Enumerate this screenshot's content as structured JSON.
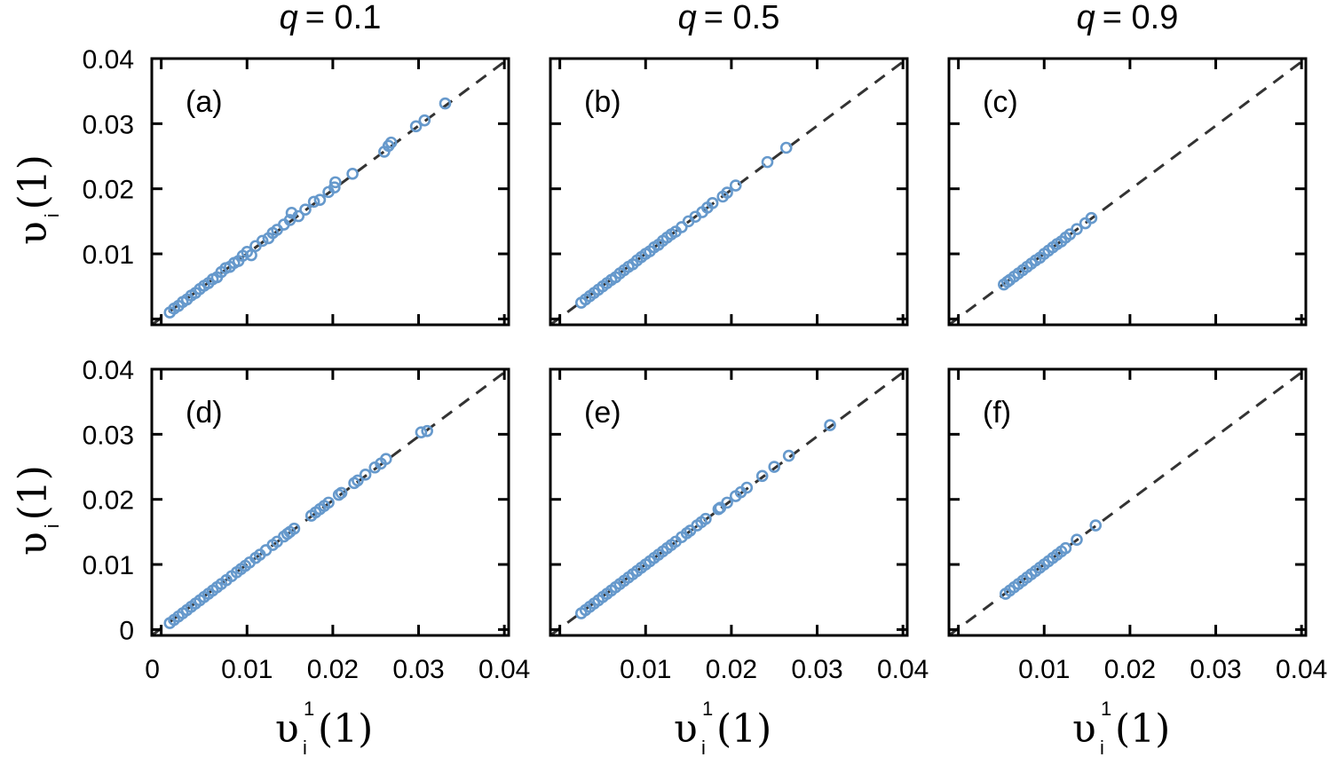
{
  "chart_data": [
    {
      "type": "scatter",
      "panel": "(a)",
      "title": "q = 0.1",
      "q": "0.1",
      "xlabel": "υ_i^1(1)",
      "ylabel": "υ_i(1)",
      "xlim": [
        -0.0011,
        0.0405
      ],
      "ylim": [
        -0.0009,
        0.04
      ],
      "xticks": [],
      "yticks": [
        "0.04",
        "0.03",
        "0.02",
        "0.01"
      ],
      "reference_line": "y = x (dashed)",
      "points": [
        [
          0.0331,
          0.0331
        ],
        [
          0.0307,
          0.0305
        ],
        [
          0.0297,
          0.0296
        ],
        [
          0.0268,
          0.0271
        ],
        [
          0.0265,
          0.0266
        ],
        [
          0.026,
          0.0257
        ],
        [
          0.0223,
          0.0223
        ],
        [
          0.0203,
          0.021
        ],
        [
          0.0202,
          0.0202
        ],
        [
          0.0195,
          0.0195
        ],
        [
          0.0185,
          0.0183
        ],
        [
          0.0178,
          0.018
        ],
        [
          0.0168,
          0.0168
        ],
        [
          0.016,
          0.0158
        ],
        [
          0.0152,
          0.0163
        ],
        [
          0.015,
          0.0152
        ],
        [
          0.0143,
          0.0145
        ],
        [
          0.0135,
          0.0137
        ],
        [
          0.013,
          0.0132
        ],
        [
          0.0125,
          0.0124
        ],
        [
          0.0118,
          0.012
        ],
        [
          0.011,
          0.0112
        ],
        [
          0.0105,
          0.0098
        ],
        [
          0.01,
          0.0103
        ],
        [
          0.0095,
          0.0097
        ],
        [
          0.009,
          0.0089
        ],
        [
          0.0085,
          0.0086
        ],
        [
          0.008,
          0.008
        ],
        [
          0.0075,
          0.0078
        ],
        [
          0.007,
          0.0072
        ],
        [
          0.0065,
          0.0064
        ],
        [
          0.006,
          0.0061
        ],
        [
          0.0055,
          0.0055
        ],
        [
          0.005,
          0.0051
        ],
        [
          0.0045,
          0.0046
        ],
        [
          0.004,
          0.004
        ],
        [
          0.0035,
          0.0036
        ],
        [
          0.003,
          0.003
        ],
        [
          0.0025,
          0.0026
        ],
        [
          0.002,
          0.002
        ],
        [
          0.0015,
          0.0016
        ],
        [
          0.001,
          0.001
        ]
      ]
    },
    {
      "type": "scatter",
      "panel": "(b)",
      "title": "q = 0.5",
      "q": "0.5",
      "xlabel": "υ_i^1(1)",
      "ylabel": "υ_i(1)",
      "xlim": [
        -0.0011,
        0.0405
      ],
      "ylim": [
        -0.0009,
        0.04
      ],
      "xticks": [],
      "yticks": [],
      "reference_line": "y = x (dashed)",
      "points": [
        [
          0.0264,
          0.0263
        ],
        [
          0.0242,
          0.0241
        ],
        [
          0.0205,
          0.0205
        ],
        [
          0.0195,
          0.0194
        ],
        [
          0.019,
          0.0188
        ],
        [
          0.0178,
          0.0178
        ],
        [
          0.0172,
          0.0171
        ],
        [
          0.0166,
          0.0164
        ],
        [
          0.0158,
          0.0157
        ],
        [
          0.015,
          0.015
        ],
        [
          0.0142,
          0.0141
        ],
        [
          0.0135,
          0.0134
        ],
        [
          0.013,
          0.013
        ],
        [
          0.0125,
          0.0125
        ],
        [
          0.012,
          0.012
        ],
        [
          0.0115,
          0.0114
        ],
        [
          0.011,
          0.011
        ],
        [
          0.0105,
          0.0104
        ],
        [
          0.01,
          0.01
        ],
        [
          0.0095,
          0.0095
        ],
        [
          0.009,
          0.009
        ],
        [
          0.0085,
          0.0084
        ],
        [
          0.008,
          0.008
        ],
        [
          0.0075,
          0.0075
        ],
        [
          0.007,
          0.007
        ],
        [
          0.0065,
          0.0064
        ],
        [
          0.006,
          0.006
        ],
        [
          0.0055,
          0.0055
        ],
        [
          0.005,
          0.005
        ],
        [
          0.0045,
          0.0045
        ],
        [
          0.004,
          0.004
        ],
        [
          0.0035,
          0.0035
        ],
        [
          0.003,
          0.003
        ],
        [
          0.0025,
          0.0025
        ]
      ]
    },
    {
      "type": "scatter",
      "panel": "(c)",
      "title": "q = 0.9",
      "q": "0.9",
      "xlabel": "υ_i^1(1)",
      "ylabel": "υ_i(1)",
      "xlim": [
        -0.0011,
        0.0405
      ],
      "ylim": [
        -0.0009,
        0.04
      ],
      "xticks": [],
      "yticks": [],
      "reference_line": "y = x (dashed)",
      "points": [
        [
          0.0155,
          0.0155
        ],
        [
          0.0148,
          0.0147
        ],
        [
          0.0138,
          0.0138
        ],
        [
          0.013,
          0.013
        ],
        [
          0.0125,
          0.0125
        ],
        [
          0.012,
          0.0119
        ],
        [
          0.0115,
          0.0115
        ],
        [
          0.011,
          0.011
        ],
        [
          0.0105,
          0.0105
        ],
        [
          0.01,
          0.01
        ],
        [
          0.0095,
          0.0094
        ],
        [
          0.009,
          0.009
        ],
        [
          0.0085,
          0.0085
        ],
        [
          0.008,
          0.008
        ],
        [
          0.0075,
          0.0075
        ],
        [
          0.007,
          0.007
        ],
        [
          0.0065,
          0.0065
        ],
        [
          0.006,
          0.006
        ],
        [
          0.0057,
          0.0057
        ],
        [
          0.0053,
          0.0053
        ]
      ]
    },
    {
      "type": "scatter",
      "panel": "(d)",
      "title": "",
      "xlabel": "υ_i^1(1)",
      "ylabel": "υ_i(1)",
      "xlim": [
        -0.0011,
        0.0405
      ],
      "ylim": [
        -0.0009,
        0.04
      ],
      "xticks": [
        "0",
        "0.01",
        "0.02",
        "0.03",
        "0.04"
      ],
      "yticks": [
        "0.04",
        "0.03",
        "0.02",
        "0.01",
        "0"
      ],
      "reference_line": "y = x (dashed)",
      "points": [
        [
          0.031,
          0.0305
        ],
        [
          0.0303,
          0.0303
        ],
        [
          0.0262,
          0.0262
        ],
        [
          0.0256,
          0.0255
        ],
        [
          0.0249,
          0.0249
        ],
        [
          0.0238,
          0.0238
        ],
        [
          0.0229,
          0.0229
        ],
        [
          0.0225,
          0.0225
        ],
        [
          0.021,
          0.021
        ],
        [
          0.0207,
          0.0207
        ],
        [
          0.0195,
          0.0195
        ],
        [
          0.019,
          0.019
        ],
        [
          0.0185,
          0.0185
        ],
        [
          0.018,
          0.018
        ],
        [
          0.0175,
          0.0175
        ],
        [
          0.0155,
          0.0155
        ],
        [
          0.015,
          0.015
        ],
        [
          0.0147,
          0.0147
        ],
        [
          0.0143,
          0.0143
        ],
        [
          0.0135,
          0.0135
        ],
        [
          0.013,
          0.013
        ],
        [
          0.0122,
          0.0122
        ],
        [
          0.0115,
          0.0115
        ],
        [
          0.011,
          0.011
        ],
        [
          0.0103,
          0.0103
        ],
        [
          0.0098,
          0.0098
        ],
        [
          0.0093,
          0.0093
        ],
        [
          0.0088,
          0.0088
        ],
        [
          0.0082,
          0.0082
        ],
        [
          0.0076,
          0.0076
        ],
        [
          0.007,
          0.007
        ],
        [
          0.0065,
          0.0065
        ],
        [
          0.006,
          0.006
        ],
        [
          0.0055,
          0.0055
        ],
        [
          0.005,
          0.005
        ],
        [
          0.0045,
          0.0045
        ],
        [
          0.004,
          0.004
        ],
        [
          0.0035,
          0.0035
        ],
        [
          0.003,
          0.003
        ],
        [
          0.0025,
          0.0025
        ],
        [
          0.002,
          0.002
        ],
        [
          0.0015,
          0.0015
        ],
        [
          0.001,
          0.001
        ]
      ]
    },
    {
      "type": "scatter",
      "panel": "(e)",
      "title": "",
      "xlabel": "υ_i^1(1)",
      "ylabel": "υ_i(1)",
      "xlim": [
        -0.0011,
        0.0405
      ],
      "ylim": [
        -0.0009,
        0.04
      ],
      "xticks": [
        "0.01",
        "0.02",
        "0.03",
        "0.04"
      ],
      "yticks": [],
      "reference_line": "y = x (dashed)",
      "points": [
        [
          0.0315,
          0.0314
        ],
        [
          0.0267,
          0.0267
        ],
        [
          0.025,
          0.025
        ],
        [
          0.0236,
          0.0236
        ],
        [
          0.0218,
          0.0218
        ],
        [
          0.0211,
          0.0211
        ],
        [
          0.0205,
          0.0205
        ],
        [
          0.0195,
          0.0195
        ],
        [
          0.0187,
          0.0187
        ],
        [
          0.0185,
          0.0185
        ],
        [
          0.017,
          0.017
        ],
        [
          0.0165,
          0.0165
        ],
        [
          0.016,
          0.016
        ],
        [
          0.0152,
          0.0152
        ],
        [
          0.0148,
          0.0148
        ],
        [
          0.0142,
          0.0142
        ],
        [
          0.0135,
          0.0135
        ],
        [
          0.013,
          0.013
        ],
        [
          0.0125,
          0.0125
        ],
        [
          0.012,
          0.012
        ],
        [
          0.0115,
          0.0115
        ],
        [
          0.011,
          0.011
        ],
        [
          0.0105,
          0.0105
        ],
        [
          0.01,
          0.01
        ],
        [
          0.0095,
          0.0095
        ],
        [
          0.009,
          0.009
        ],
        [
          0.0085,
          0.0085
        ],
        [
          0.008,
          0.008
        ],
        [
          0.0075,
          0.0075
        ],
        [
          0.007,
          0.007
        ],
        [
          0.0065,
          0.0065
        ],
        [
          0.006,
          0.006
        ],
        [
          0.0055,
          0.0055
        ],
        [
          0.005,
          0.005
        ],
        [
          0.0045,
          0.0045
        ],
        [
          0.004,
          0.004
        ],
        [
          0.0035,
          0.0035
        ],
        [
          0.003,
          0.003
        ],
        [
          0.0025,
          0.0025
        ]
      ]
    },
    {
      "type": "scatter",
      "panel": "(f)",
      "title": "",
      "xlabel": "υ_i^1(1)",
      "ylabel": "υ_i(1)",
      "xlim": [
        -0.0011,
        0.0405
      ],
      "ylim": [
        -0.0009,
        0.04
      ],
      "xticks": [
        "0.01",
        "0.02",
        "0.03",
        "0.04"
      ],
      "yticks": [],
      "reference_line": "y = x (dashed)",
      "points": [
        [
          0.016,
          0.016
        ],
        [
          0.0138,
          0.0138
        ],
        [
          0.0125,
          0.0125
        ],
        [
          0.012,
          0.012
        ],
        [
          0.0115,
          0.0115
        ],
        [
          0.011,
          0.011
        ],
        [
          0.0105,
          0.0105
        ],
        [
          0.01,
          0.01
        ],
        [
          0.0095,
          0.0095
        ],
        [
          0.009,
          0.009
        ],
        [
          0.0085,
          0.0085
        ],
        [
          0.008,
          0.008
        ],
        [
          0.0075,
          0.0075
        ],
        [
          0.007,
          0.007
        ],
        [
          0.0065,
          0.0065
        ],
        [
          0.006,
          0.006
        ],
        [
          0.0055,
          0.0055
        ]
      ]
    }
  ],
  "labels": {
    "col_titles": [
      {
        "q": "q",
        "value": "= 0.1"
      },
      {
        "q": "q",
        "value": "= 0.5"
      },
      {
        "q": "q",
        "value": "= 0.9"
      }
    ],
    "ylabel_main": "υ",
    "ylabel_sub": "i",
    "ylabel_arg": "(1)",
    "xlabel_main": "υ",
    "xlabel_sub": "i",
    "xlabel_sup": "1",
    "xlabel_arg": "(1)"
  },
  "colors": {
    "marker": "#6699cc",
    "reference_line": "#333333",
    "axes": "#000000"
  }
}
